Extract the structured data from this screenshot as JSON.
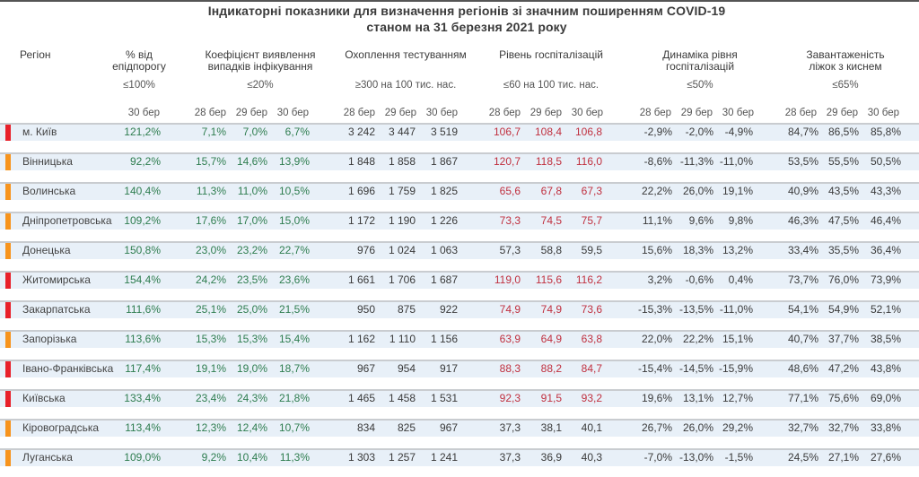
{
  "title": {
    "line1": "Індикаторні показники для визначення регіонів зі значним поширенням COVID-19",
    "line2": "станом на 31 березня 2021 року"
  },
  "headers": {
    "region": "Регіон",
    "epi_percent": {
      "line1": "% від",
      "line2": "епідпорогу",
      "threshold": "≤100%",
      "dates": [
        "30 бер"
      ]
    },
    "detection": {
      "line1": "Коефіцієнт виявлення",
      "line2": "випадків інфікування",
      "threshold": "≤20%",
      "dates": [
        "28 бер",
        "29 бер",
        "30 бер"
      ]
    },
    "testing": {
      "line1": "Охоплення тестуванням",
      "threshold": "≥300 на 100 тис. нас.",
      "dates": [
        "28 бер",
        "29 бер",
        "30 бер"
      ]
    },
    "hospitalization": {
      "line1": "Рівень госпіталізацій",
      "threshold": "≤60 на 100 тис. нас.",
      "dates": [
        "28 бер",
        "29 бер",
        "30 бер"
      ]
    },
    "hosp_dynamics": {
      "line1": "Динаміка рівня",
      "line2": "госпіталізацій",
      "threshold": "≤50%",
      "dates": [
        "28 бер",
        "29 бер",
        "30 бер"
      ]
    },
    "oxygen_beds": {
      "line1": "Завантаженість",
      "line2": "ліжок з киснем",
      "threshold": "≤65%",
      "dates": [
        "28 бер",
        "29 бер",
        "30 бер"
      ]
    }
  },
  "colors": {
    "red_flag": "#e8202a",
    "orange_flag": "#f7941d",
    "green_text": "#2e7d4f",
    "red_text": "#c0303f",
    "row_band": "#e8f0f8"
  },
  "rows": [
    {
      "region": "м. Київ",
      "flag": "red",
      "epi": "121,2%",
      "detection": [
        "7,1%",
        "7,0%",
        "6,7%"
      ],
      "testing": [
        "3 242",
        "3 447",
        "3 519"
      ],
      "hosp": [
        "106,7",
        "108,4",
        "106,8"
      ],
      "hosp_red": [
        true,
        true,
        true
      ],
      "dynamics": [
        "-2,9%",
        "-2,0%",
        "-4,9%"
      ],
      "oxygen": [
        "84,7%",
        "86,5%",
        "85,8%"
      ]
    },
    {
      "region": "Вінницька",
      "flag": "orange",
      "epi": "92,2%",
      "detection": [
        "15,7%",
        "14,6%",
        "13,9%"
      ],
      "testing": [
        "1 848",
        "1 858",
        "1 867"
      ],
      "hosp": [
        "120,7",
        "118,5",
        "116,0"
      ],
      "hosp_red": [
        true,
        true,
        true
      ],
      "dynamics": [
        "-8,6%",
        "-11,3%",
        "-11,0%"
      ],
      "oxygen": [
        "53,5%",
        "55,5%",
        "50,5%"
      ]
    },
    {
      "region": "Волинська",
      "flag": "orange",
      "epi": "140,4%",
      "detection": [
        "11,3%",
        "11,0%",
        "10,5%"
      ],
      "testing": [
        "1 696",
        "1 759",
        "1 825"
      ],
      "hosp": [
        "65,6",
        "67,8",
        "67,3"
      ],
      "hosp_red": [
        true,
        true,
        true
      ],
      "dynamics": [
        "22,2%",
        "26,0%",
        "19,1%"
      ],
      "oxygen": [
        "40,9%",
        "43,5%",
        "43,3%"
      ]
    },
    {
      "region": "Дніпропетровська",
      "flag": "orange",
      "epi": "109,2%",
      "detection": [
        "17,6%",
        "17,0%",
        "15,0%"
      ],
      "testing": [
        "1 172",
        "1 190",
        "1 226"
      ],
      "hosp": [
        "73,3",
        "74,5",
        "75,7"
      ],
      "hosp_red": [
        true,
        true,
        true
      ],
      "dynamics": [
        "11,1%",
        "9,6%",
        "9,8%"
      ],
      "oxygen": [
        "46,3%",
        "47,5%",
        "46,4%"
      ]
    },
    {
      "region": "Донецька",
      "flag": "orange",
      "epi": "150,8%",
      "detection": [
        "23,0%",
        "23,2%",
        "22,7%"
      ],
      "testing": [
        "976",
        "1 024",
        "1 063"
      ],
      "hosp": [
        "57,3",
        "58,8",
        "59,5"
      ],
      "hosp_red": [
        false,
        false,
        false
      ],
      "dynamics": [
        "15,6%",
        "18,3%",
        "13,2%"
      ],
      "oxygen": [
        "33,4%",
        "35,5%",
        "36,4%"
      ]
    },
    {
      "region": "Житомирська",
      "flag": "red",
      "epi": "154,4%",
      "detection": [
        "24,2%",
        "23,5%",
        "23,6%"
      ],
      "testing": [
        "1 661",
        "1 706",
        "1 687"
      ],
      "hosp": [
        "119,0",
        "115,6",
        "116,2"
      ],
      "hosp_red": [
        true,
        true,
        true
      ],
      "dynamics": [
        "3,2%",
        "-0,6%",
        "0,4%"
      ],
      "oxygen": [
        "73,7%",
        "76,0%",
        "73,9%"
      ]
    },
    {
      "region": "Закарпатська",
      "flag": "red",
      "epi": "111,6%",
      "detection": [
        "25,1%",
        "25,0%",
        "21,5%"
      ],
      "testing": [
        "950",
        "875",
        "922"
      ],
      "hosp": [
        "74,9",
        "74,9",
        "73,6"
      ],
      "hosp_red": [
        true,
        true,
        true
      ],
      "dynamics": [
        "-15,3%",
        "-13,5%",
        "-11,0%"
      ],
      "oxygen": [
        "54,1%",
        "54,9%",
        "52,1%"
      ]
    },
    {
      "region": "Запорізька",
      "flag": "orange",
      "epi": "113,6%",
      "detection": [
        "15,3%",
        "15,3%",
        "15,4%"
      ],
      "testing": [
        "1 162",
        "1 110",
        "1 156"
      ],
      "hosp": [
        "63,9",
        "64,9",
        "63,8"
      ],
      "hosp_red": [
        true,
        true,
        true
      ],
      "dynamics": [
        "22,0%",
        "22,2%",
        "15,1%"
      ],
      "oxygen": [
        "40,7%",
        "37,7%",
        "38,5%"
      ]
    },
    {
      "region": "Івано-Франківська",
      "flag": "red",
      "epi": "117,4%",
      "detection": [
        "19,1%",
        "19,0%",
        "18,7%"
      ],
      "testing": [
        "967",
        "954",
        "917"
      ],
      "hosp": [
        "88,3",
        "88,2",
        "84,7"
      ],
      "hosp_red": [
        true,
        true,
        true
      ],
      "dynamics": [
        "-15,4%",
        "-14,5%",
        "-15,9%"
      ],
      "oxygen": [
        "48,6%",
        "47,2%",
        "43,8%"
      ]
    },
    {
      "region": "Київська",
      "flag": "red",
      "epi": "133,4%",
      "detection": [
        "23,4%",
        "24,3%",
        "21,8%"
      ],
      "testing": [
        "1 465",
        "1 458",
        "1 531"
      ],
      "hosp": [
        "92,3",
        "91,5",
        "93,2"
      ],
      "hosp_red": [
        true,
        true,
        true
      ],
      "dynamics": [
        "19,6%",
        "13,1%",
        "12,7%"
      ],
      "oxygen": [
        "77,1%",
        "75,6%",
        "69,0%"
      ]
    },
    {
      "region": "Кіровоградська",
      "flag": "orange",
      "epi": "113,4%",
      "detection": [
        "12,3%",
        "12,4%",
        "10,7%"
      ],
      "testing": [
        "834",
        "825",
        "967"
      ],
      "hosp": [
        "37,3",
        "38,1",
        "40,1"
      ],
      "hosp_red": [
        false,
        false,
        false
      ],
      "dynamics": [
        "26,7%",
        "26,0%",
        "29,2%"
      ],
      "oxygen": [
        "32,7%",
        "32,7%",
        "33,8%"
      ]
    },
    {
      "region": "Луганська",
      "flag": "orange",
      "epi": "109,0%",
      "detection": [
        "9,2%",
        "10,4%",
        "11,3%"
      ],
      "testing": [
        "1 303",
        "1 257",
        "1 241"
      ],
      "hosp": [
        "37,3",
        "36,9",
        "40,3"
      ],
      "hosp_red": [
        false,
        false,
        false
      ],
      "dynamics": [
        "-7,0%",
        "-13,0%",
        "-1,5%"
      ],
      "oxygen": [
        "24,5%",
        "27,1%",
        "27,6%"
      ]
    }
  ]
}
